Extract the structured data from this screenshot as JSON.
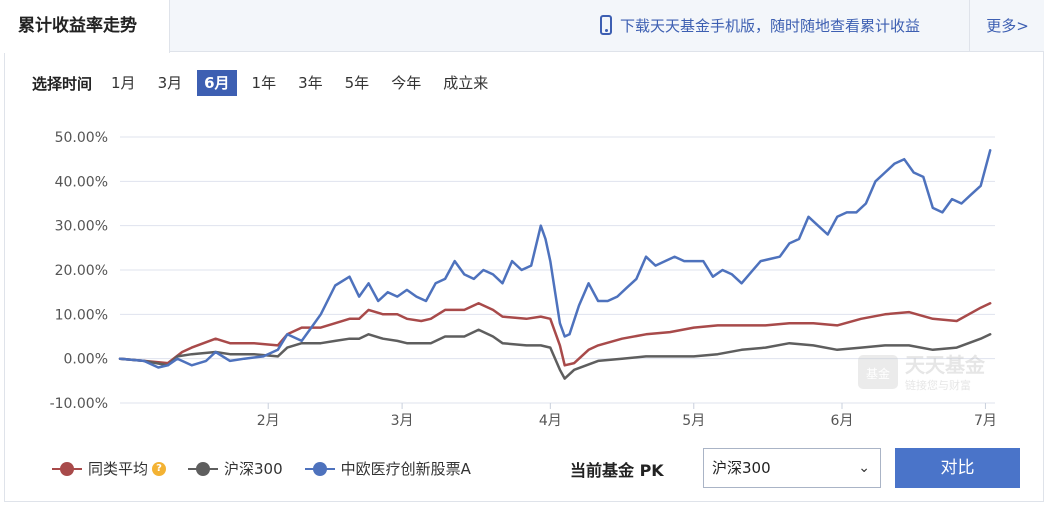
{
  "header": {
    "title": "累计收益率走势",
    "download_text": "下载天天基金手机版，随时随地查看累计收益",
    "more_label": "更多>"
  },
  "periods": {
    "label": "选择时间",
    "items": [
      "1月",
      "3月",
      "6月",
      "1年",
      "3年",
      "5年",
      "今年",
      "成立来"
    ],
    "active_index": 2
  },
  "watermark": {
    "logo": "基金",
    "name": "天天基金",
    "slogan": "链接您与财富"
  },
  "chart_data": {
    "type": "line",
    "x_range": [
      0,
      183
    ],
    "x_ticks": [
      {
        "label": "2月",
        "x": 31
      },
      {
        "label": "3月",
        "x": 59
      },
      {
        "label": "4月",
        "x": 90
      },
      {
        "label": "5月",
        "x": 120
      },
      {
        "label": "6月",
        "x": 151
      },
      {
        "label": "7月",
        "x": 181
      }
    ],
    "ylim": [
      -10,
      50
    ],
    "y_ticks": [
      "50.00%",
      "40.00%",
      "30.00%",
      "20.00%",
      "10.00%",
      "0.00%",
      "-10.00%"
    ],
    "y_tick_values": [
      50,
      40,
      30,
      20,
      10,
      0,
      -10
    ],
    "grid": true,
    "legend_position": "bottom-left",
    "series": [
      {
        "name": "同类平均",
        "color": "#a84a4a",
        "x": [
          0,
          5,
          10,
          13,
          15,
          20,
          23,
          28,
          33,
          35,
          38,
          42,
          45,
          48,
          50,
          52,
          55,
          58,
          60,
          63,
          65,
          68,
          72,
          75,
          78,
          80,
          85,
          88,
          90,
          92,
          93,
          95,
          98,
          100,
          105,
          110,
          115,
          120,
          125,
          130,
          135,
          140,
          145,
          150,
          155,
          160,
          165,
          170,
          175,
          180,
          182
        ],
        "values": [
          0,
          -0.5,
          -1,
          1.5,
          2.5,
          4.5,
          3.5,
          3.5,
          3,
          5.5,
          7,
          7,
          8,
          9,
          9,
          11,
          10,
          10,
          9,
          8.5,
          9,
          11,
          11,
          12.5,
          11,
          9.5,
          9,
          9.5,
          9,
          3,
          -1.5,
          -1,
          2,
          3,
          4.5,
          5.5,
          6,
          7,
          7.5,
          7.5,
          7.5,
          8,
          8,
          7.5,
          9,
          10,
          10.5,
          9,
          8.5,
          11.5,
          12.5
        ]
      },
      {
        "name": "沪深300",
        "color": "#5e5e5e",
        "x": [
          0,
          5,
          10,
          12,
          15,
          20,
          23,
          28,
          33,
          35,
          38,
          42,
          45,
          48,
          50,
          52,
          55,
          58,
          60,
          65,
          68,
          72,
          75,
          78,
          80,
          85,
          88,
          90,
          92,
          93,
          95,
          100,
          105,
          110,
          115,
          120,
          125,
          130,
          135,
          140,
          145,
          150,
          155,
          160,
          165,
          170,
          175,
          180,
          182
        ],
        "values": [
          0,
          -0.5,
          -1.5,
          0.5,
          1,
          1.5,
          1,
          1,
          0.5,
          2.5,
          3.5,
          3.5,
          4,
          4.5,
          4.5,
          5.5,
          4.5,
          4,
          3.5,
          3.5,
          5,
          5,
          6.5,
          5,
          3.5,
          3,
          3,
          2.5,
          -2.5,
          -4.5,
          -2.5,
          -0.5,
          0,
          0.5,
          0.5,
          0.5,
          1,
          2,
          2.5,
          3.5,
          3,
          2,
          2.5,
          3,
          3,
          2,
          2.5,
          4.5,
          5.5
        ]
      },
      {
        "name": "中欧医疗创新股票A",
        "color": "#4e72bd",
        "x": [
          0,
          5,
          8,
          10,
          12,
          15,
          18,
          20,
          23,
          26,
          30,
          33,
          35,
          38,
          40,
          42,
          45,
          48,
          50,
          52,
          54,
          56,
          58,
          60,
          62,
          64,
          66,
          68,
          70,
          72,
          74,
          76,
          78,
          80,
          82,
          84,
          86,
          88,
          89,
          90,
          91,
          92,
          93,
          94,
          96,
          98,
          100,
          102,
          104,
          106,
          108,
          110,
          112,
          114,
          116,
          118,
          120,
          122,
          124,
          126,
          128,
          130,
          132,
          134,
          136,
          138,
          140,
          142,
          144,
          146,
          148,
          150,
          152,
          154,
          156,
          158,
          160,
          162,
          164,
          166,
          168,
          170,
          172,
          174,
          176,
          178,
          180,
          182
        ],
        "values": [
          0,
          -0.5,
          -2,
          -1.5,
          0,
          -1.5,
          -0.5,
          1.5,
          -0.5,
          0,
          0.5,
          2,
          5.5,
          4,
          7,
          10,
          16.5,
          18.5,
          14,
          17,
          13,
          15,
          14,
          15.5,
          14,
          13,
          17,
          18,
          22,
          19,
          18,
          20,
          19,
          17,
          22,
          20,
          21,
          30,
          27,
          22,
          15,
          8,
          5,
          5.5,
          12,
          17,
          13,
          13,
          14,
          16,
          18,
          23,
          21,
          22,
          23,
          22,
          22,
          22,
          18.5,
          20,
          19,
          17,
          19.5,
          22,
          22.5,
          23,
          26,
          27,
          32,
          30,
          28,
          32,
          33,
          33,
          35,
          40,
          42,
          44,
          45,
          42,
          41,
          34,
          33,
          36,
          35,
          37,
          39,
          47
        ]
      }
    ]
  },
  "pk": {
    "label": "当前基金 PK",
    "selected": "沪深300",
    "compare_label": "对比"
  }
}
